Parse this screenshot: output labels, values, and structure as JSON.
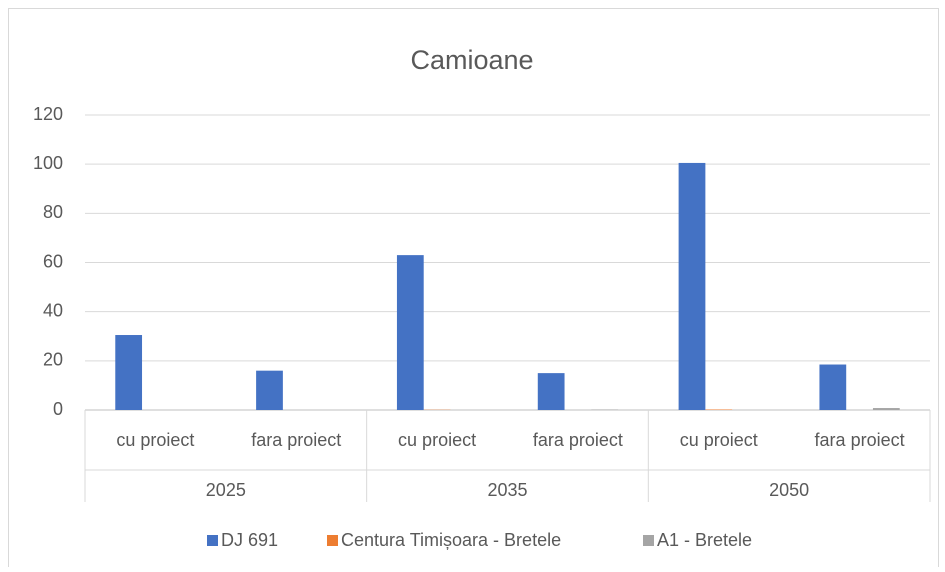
{
  "chart_data": {
    "type": "bar",
    "title": "Camioane",
    "categories": [
      "cu proiect",
      "fara proiect",
      "cu proiect",
      "fara proiect",
      "cu proiect",
      "fara proiect"
    ],
    "category_groups": [
      "2025",
      "2035",
      "2050"
    ],
    "series": [
      {
        "name": "DJ 691",
        "color": "#4472c4",
        "values": [
          30.5,
          16,
          63,
          15,
          100.5,
          18.5
        ]
      },
      {
        "name": "Centura Timișoara - Bretele",
        "color": "#ed7d31",
        "values": [
          0,
          0,
          0.1,
          0,
          0.2,
          0
        ]
      },
      {
        "name": "A1 - Bretele",
        "color": "#a5a5a5",
        "values": [
          0,
          0,
          0,
          0.2,
          0,
          0.8
        ]
      }
    ],
    "ylim": [
      0,
      120
    ],
    "yticks": [
      0,
      20,
      40,
      60,
      80,
      100,
      120
    ],
    "grid": true,
    "legend": "bottom"
  }
}
